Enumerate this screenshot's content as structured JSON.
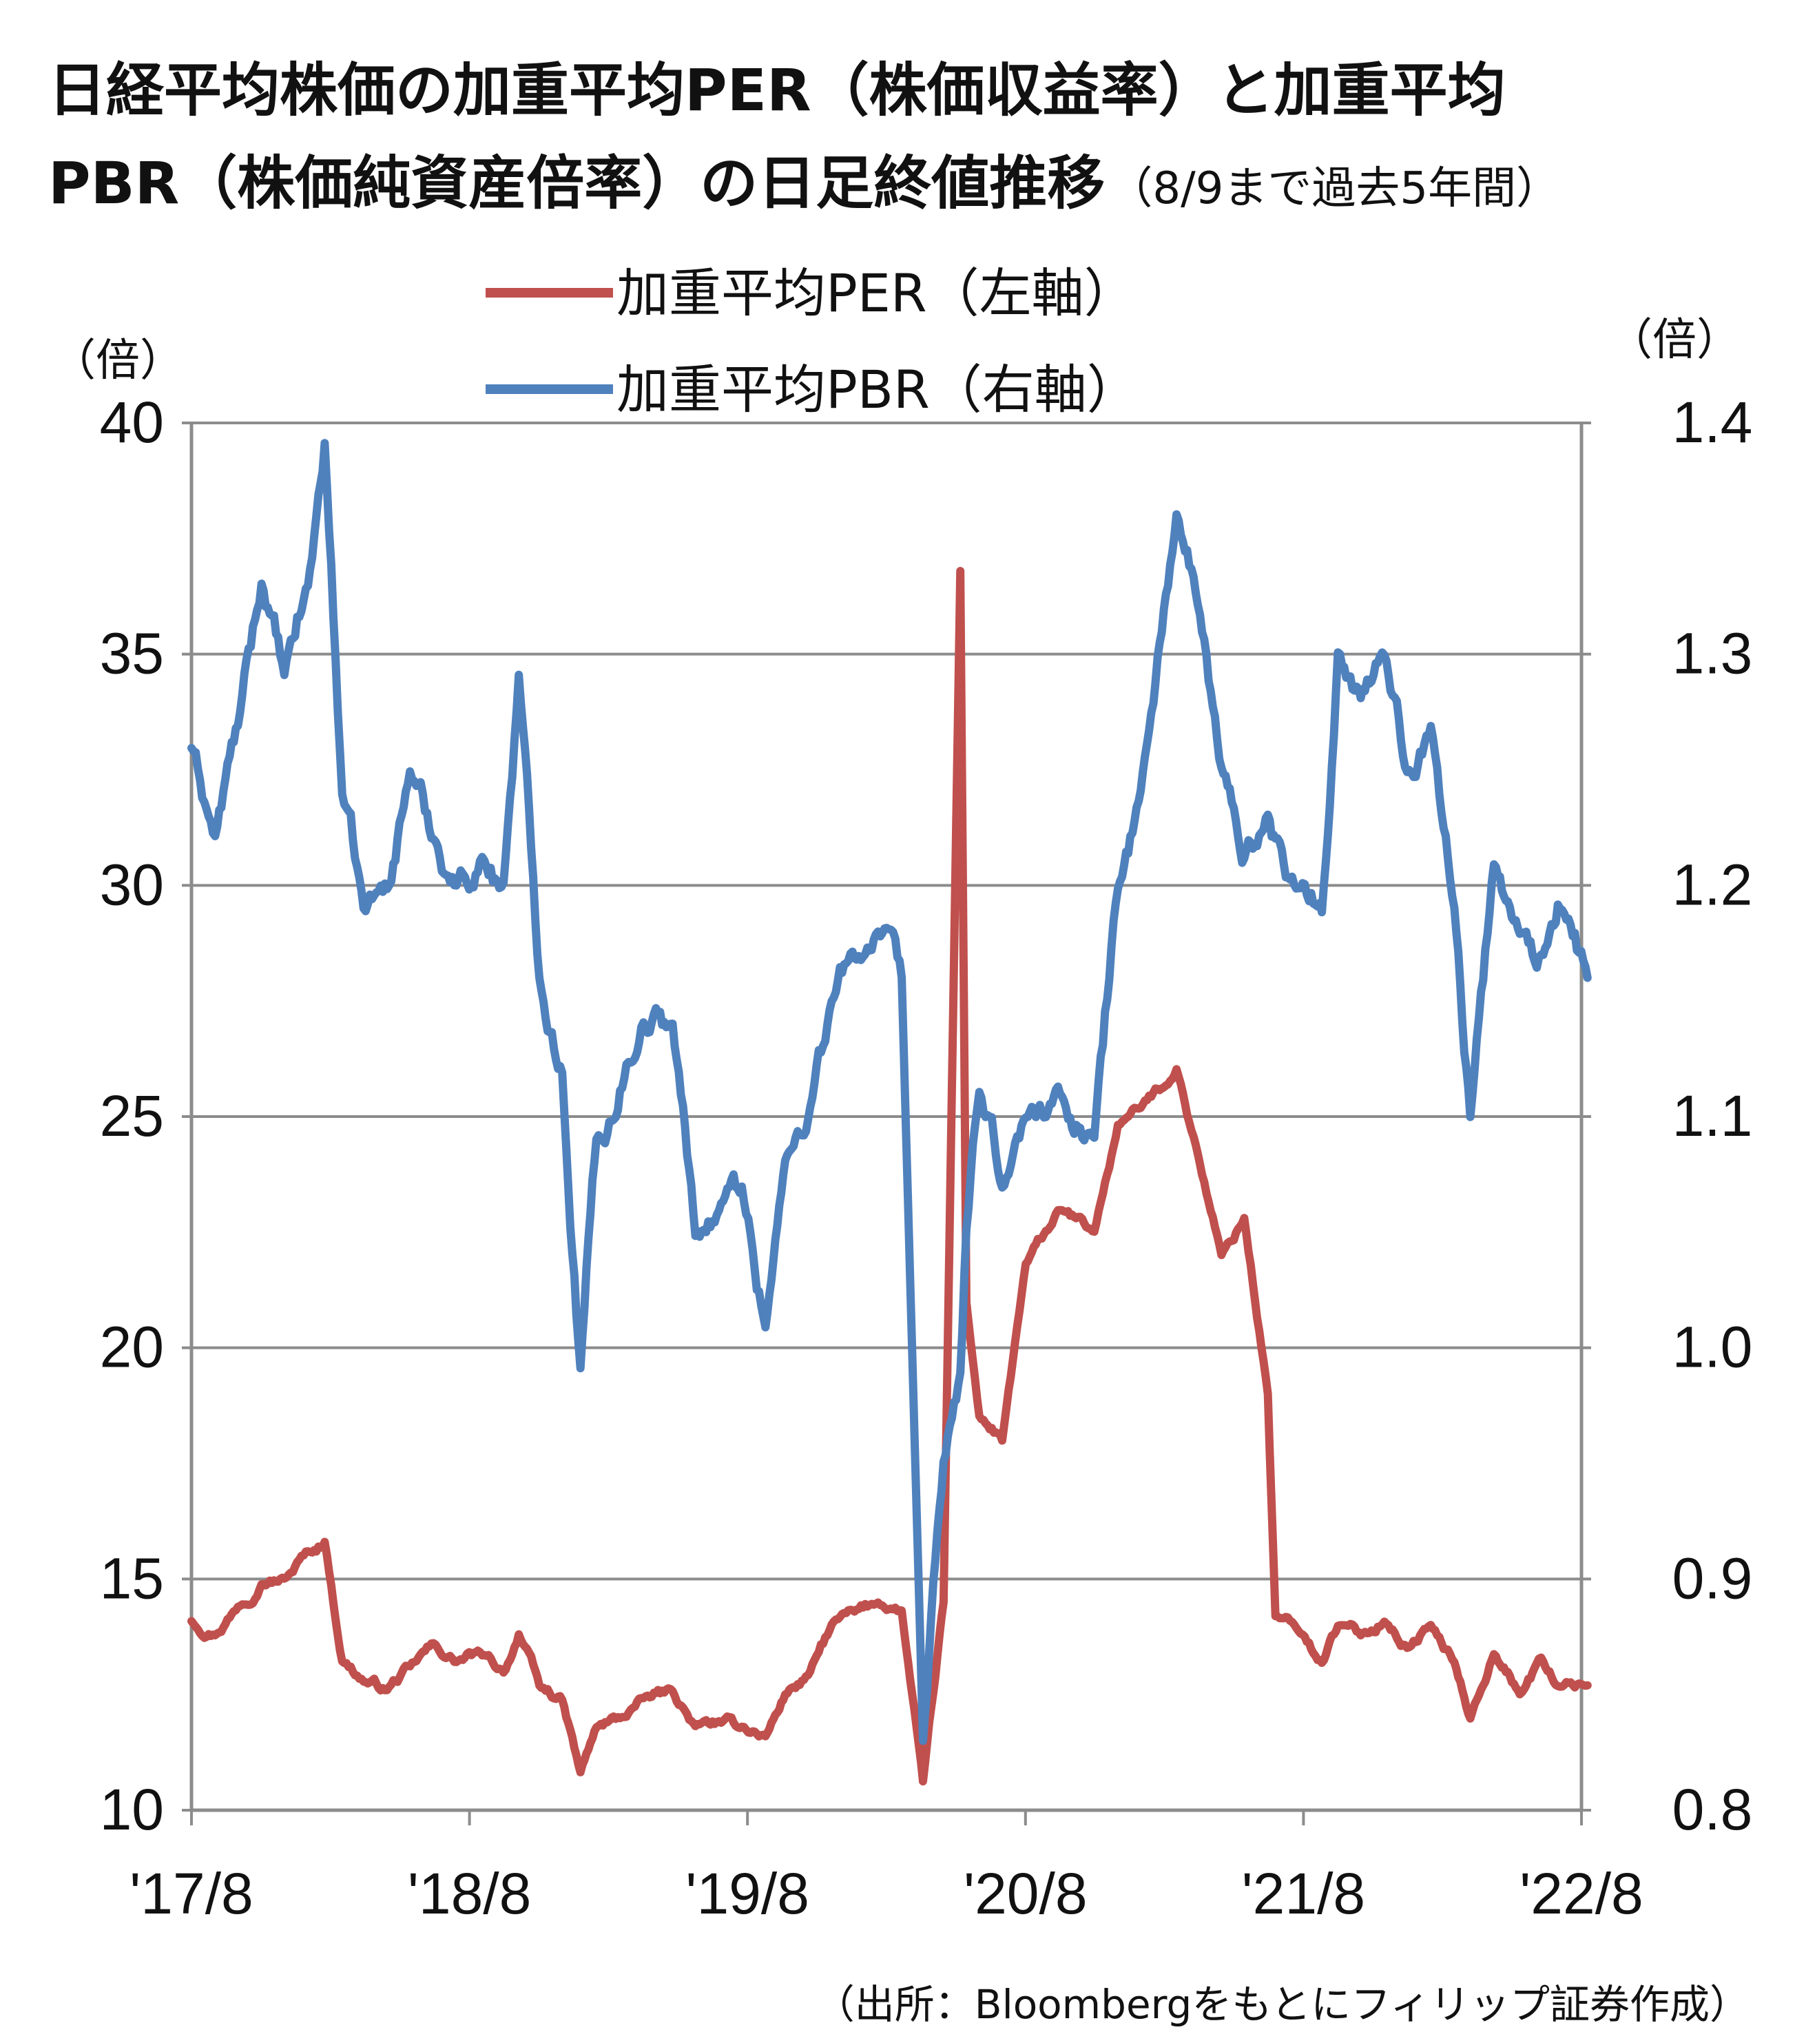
{
  "title": {
    "line1": "日経平均株価の加重平均PER（株価収益率）と加重平均",
    "line2_main": "PBR（株価純資産倍率）の日足終値推移",
    "line2_note": "（8/9まで過去5年間）"
  },
  "units": {
    "left": "（倍）",
    "right": "（倍）"
  },
  "source": "（出所：Bloombergをもとにフィリップ証券作成）",
  "colors": {
    "per": "#c0504d",
    "pbr": "#4f81bd",
    "grid": "#8c8c8c",
    "axis": "#8c8c8c"
  },
  "chart_data": {
    "type": "line",
    "grid": "horizontal",
    "legend_position": "top-center",
    "x_range": [
      "2017-08",
      "2022-08"
    ],
    "x_ticks": [
      "'17/8",
      "'18/8",
      "'19/8",
      "'20/8",
      "'21/8",
      "'22/8"
    ],
    "y_left": {
      "label": "（倍）",
      "range": [
        10,
        40
      ],
      "ticks": [
        "10",
        "15",
        "20",
        "25",
        "30",
        "35",
        "40"
      ]
    },
    "y_right": {
      "label": "（倍）",
      "range": [
        0.8,
        1.4
      ],
      "ticks": [
        "0.8",
        "0.9",
        "1.0",
        "1.1",
        "1.2",
        "1.3",
        "1.4"
      ]
    },
    "series": [
      {
        "name": "加重平均PER（左軸）",
        "axis": "left",
        "color": "#c0504d",
        "points": [
          [
            "2017-08-01",
            14.1
          ],
          [
            "2017-09-01",
            13.8
          ],
          [
            "2017-10-01",
            14.4
          ],
          [
            "2017-11-01",
            14.9
          ],
          [
            "2017-12-01",
            15.0
          ],
          [
            "2018-01-01",
            15.6
          ],
          [
            "2018-01-23",
            15.8
          ],
          [
            "2018-02-15",
            13.2
          ],
          [
            "2018-03-15",
            12.8
          ],
          [
            "2018-04-15",
            12.6
          ],
          [
            "2018-05-15",
            13.1
          ],
          [
            "2018-06-15",
            13.6
          ],
          [
            "2018-07-15",
            13.2
          ],
          [
            "2018-08-15",
            13.4
          ],
          [
            "2018-09-15",
            13.0
          ],
          [
            "2018-10-05",
            13.8
          ],
          [
            "2018-11-01",
            12.7
          ],
          [
            "2018-12-01",
            12.4
          ],
          [
            "2018-12-25",
            10.8
          ],
          [
            "2019-01-15",
            11.8
          ],
          [
            "2019-02-15",
            12.0
          ],
          [
            "2019-03-15",
            12.4
          ],
          [
            "2019-04-25",
            12.6
          ],
          [
            "2019-05-25",
            11.8
          ],
          [
            "2019-06-25",
            11.9
          ],
          [
            "2019-07-25",
            11.8
          ],
          [
            "2019-08-25",
            11.6
          ],
          [
            "2019-09-20",
            12.5
          ],
          [
            "2019-10-20",
            12.9
          ],
          [
            "2019-11-20",
            14.0
          ],
          [
            "2019-12-20",
            14.3
          ],
          [
            "2020-01-20",
            14.5
          ],
          [
            "2020-02-20",
            14.3
          ],
          [
            "2020-03-19",
            10.6
          ],
          [
            "2020-04-15",
            14.5
          ],
          [
            "2020-05-07",
            36.8
          ],
          [
            "2020-05-15",
            21.0
          ],
          [
            "2020-06-01",
            18.5
          ],
          [
            "2020-07-01",
            18.0
          ],
          [
            "2020-08-01",
            21.8
          ],
          [
            "2020-09-15",
            23.0
          ],
          [
            "2020-10-30",
            22.5
          ],
          [
            "2020-11-30",
            24.8
          ],
          [
            "2020-12-30",
            25.2
          ],
          [
            "2021-02-15",
            26.0
          ],
          [
            "2021-03-15",
            24.2
          ],
          [
            "2021-04-15",
            22.0
          ],
          [
            "2021-05-15",
            22.8
          ],
          [
            "2021-06-15",
            19.0
          ],
          [
            "2021-06-25",
            14.2
          ],
          [
            "2021-07-25",
            13.9
          ],
          [
            "2021-08-25",
            13.2
          ],
          [
            "2021-09-15",
            14.0
          ],
          [
            "2021-10-15",
            13.8
          ],
          [
            "2021-11-15",
            14.1
          ],
          [
            "2021-12-15",
            13.5
          ],
          [
            "2022-01-15",
            14.0
          ],
          [
            "2022-02-15",
            13.2
          ],
          [
            "2022-03-08",
            12.0
          ],
          [
            "2022-04-08",
            13.4
          ],
          [
            "2022-05-12",
            12.5
          ],
          [
            "2022-06-09",
            13.3
          ],
          [
            "2022-07-01",
            12.7
          ],
          [
            "2022-08-09",
            12.7
          ]
        ]
      },
      {
        "name": "加重平均PBR（右軸）",
        "axis": "right",
        "color": "#4f81bd",
        "points": [
          [
            "2017-08-01",
            1.26
          ],
          [
            "2017-09-01",
            1.22
          ],
          [
            "2017-10-01",
            1.27
          ],
          [
            "2017-11-01",
            1.33
          ],
          [
            "2017-12-01",
            1.29
          ],
          [
            "2018-01-01",
            1.33
          ],
          [
            "2018-01-23",
            1.39
          ],
          [
            "2018-02-15",
            1.24
          ],
          [
            "2018-03-15",
            1.19
          ],
          [
            "2018-04-15",
            1.2
          ],
          [
            "2018-05-15",
            1.25
          ],
          [
            "2018-06-15",
            1.22
          ],
          [
            "2018-07-15",
            1.2
          ],
          [
            "2018-08-15",
            1.21
          ],
          [
            "2018-09-15",
            1.2
          ],
          [
            "2018-10-05",
            1.29
          ],
          [
            "2018-11-01",
            1.16
          ],
          [
            "2018-12-01",
            1.12
          ],
          [
            "2018-12-25",
            0.99
          ],
          [
            "2019-01-15",
            1.09
          ],
          [
            "2019-02-15",
            1.11
          ],
          [
            "2019-03-15",
            1.14
          ],
          [
            "2019-04-25",
            1.14
          ],
          [
            "2019-05-25",
            1.05
          ],
          [
            "2019-06-25",
            1.06
          ],
          [
            "2019-07-25",
            1.07
          ],
          [
            "2019-08-25",
            1.01
          ],
          [
            "2019-09-20",
            1.08
          ],
          [
            "2019-10-20",
            1.1
          ],
          [
            "2019-11-20",
            1.15
          ],
          [
            "2019-12-20",
            1.17
          ],
          [
            "2020-01-20",
            1.18
          ],
          [
            "2020-02-20",
            1.16
          ],
          [
            "2020-03-19",
            0.83
          ],
          [
            "2020-04-15",
            0.95
          ],
          [
            "2020-05-07",
            0.99
          ],
          [
            "2020-05-15",
            1.05
          ],
          [
            "2020-06-01",
            1.11
          ],
          [
            "2020-07-01",
            1.07
          ],
          [
            "2020-08-01",
            1.1
          ],
          [
            "2020-09-15",
            1.11
          ],
          [
            "2020-10-30",
            1.09
          ],
          [
            "2020-11-30",
            1.2
          ],
          [
            "2020-12-30",
            1.24
          ],
          [
            "2021-02-15",
            1.36
          ],
          [
            "2021-03-15",
            1.32
          ],
          [
            "2021-04-15",
            1.25
          ],
          [
            "2021-05-15",
            1.21
          ],
          [
            "2021-06-15",
            1.23
          ],
          [
            "2021-06-25",
            1.22
          ],
          [
            "2021-07-25",
            1.2
          ],
          [
            "2021-08-25",
            1.19
          ],
          [
            "2021-09-15",
            1.3
          ],
          [
            "2021-10-15",
            1.28
          ],
          [
            "2021-11-15",
            1.3
          ],
          [
            "2021-12-15",
            1.25
          ],
          [
            "2022-01-15",
            1.27
          ],
          [
            "2022-02-15",
            1.19
          ],
          [
            "2022-03-08",
            1.1
          ],
          [
            "2022-04-08",
            1.21
          ],
          [
            "2022-05-12",
            1.18
          ],
          [
            "2022-06-09",
            1.17
          ],
          [
            "2022-07-01",
            1.19
          ],
          [
            "2022-08-09",
            1.16
          ]
        ]
      }
    ]
  }
}
